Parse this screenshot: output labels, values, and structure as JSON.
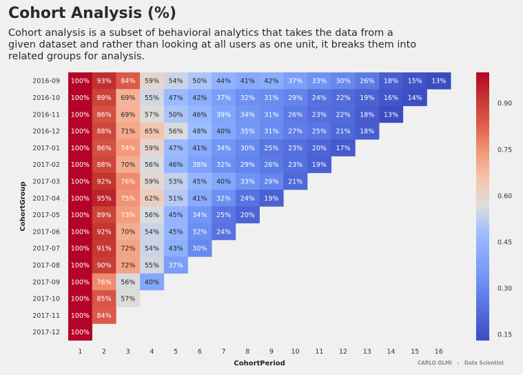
{
  "title": "Cohort Analysis (%)",
  "subtitle": "Cohort analysis is a subset of behavioral analytics that takes the data from a given dataset and rather than looking at all users as one unit, it breaks them into related groups for analysis.",
  "credit": "CARLO OLMI   -   Data Scientist",
  "chart_data": {
    "type": "heatmap",
    "xlabel": "CohortPeriod",
    "ylabel": "CohortGroup",
    "x": [
      1,
      2,
      3,
      4,
      5,
      6,
      7,
      8,
      9,
      10,
      11,
      12,
      13,
      14,
      15,
      16
    ],
    "y": [
      "2016-09",
      "2016-10",
      "2016-11",
      "2016-12",
      "2017-01",
      "2017-02",
      "2017-03",
      "2017-04",
      "2017-05",
      "2017-06",
      "2017-07",
      "2017-08",
      "2017-09",
      "2017-10",
      "2017-11",
      "2017-12"
    ],
    "values": [
      [
        100,
        93,
        84,
        59,
        54,
        50,
        44,
        41,
        42,
        37,
        33,
        30,
        26,
        18,
        15,
        13
      ],
      [
        100,
        89,
        69,
        55,
        47,
        42,
        37,
        32,
        31,
        29,
        24,
        22,
        19,
        16,
        14
      ],
      [
        100,
        86,
        69,
        57,
        50,
        46,
        39,
        34,
        31,
        26,
        23,
        22,
        18,
        13
      ],
      [
        100,
        88,
        71,
        65,
        56,
        48,
        40,
        35,
        31,
        27,
        25,
        21,
        18
      ],
      [
        100,
        86,
        74,
        59,
        47,
        41,
        34,
        30,
        25,
        23,
        20,
        17
      ],
      [
        100,
        88,
        70,
        56,
        46,
        38,
        32,
        29,
        26,
        23,
        19
      ],
      [
        100,
        92,
        76,
        59,
        53,
        45,
        40,
        33,
        29,
        21
      ],
      [
        100,
        95,
        75,
        62,
        51,
        41,
        32,
        24,
        19
      ],
      [
        100,
        89,
        73,
        56,
        45,
        34,
        25,
        20
      ],
      [
        100,
        92,
        70,
        54,
        45,
        32,
        24
      ],
      [
        100,
        91,
        72,
        54,
        43,
        30
      ],
      [
        100,
        90,
        72,
        55,
        37
      ],
      [
        100,
        76,
        56,
        40
      ],
      [
        100,
        85,
        57
      ],
      [
        100,
        84
      ],
      [
        100
      ]
    ],
    "value_format": "percent",
    "colormap": "coolwarm",
    "vmin": 0.13,
    "vmax": 1.0,
    "colorbar_ticks": [
      "0.15",
      "0.30",
      "0.45",
      "0.60",
      "0.75",
      "0.90"
    ]
  }
}
